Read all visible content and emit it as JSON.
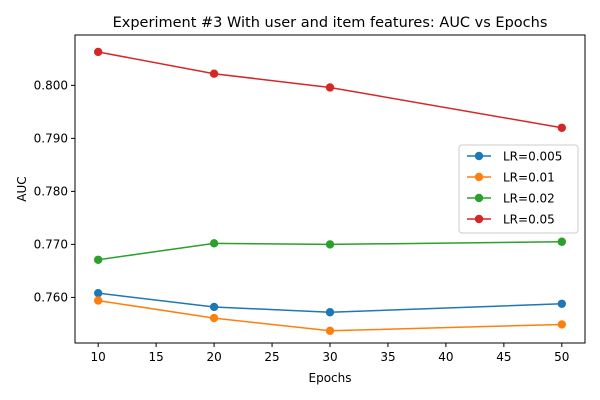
{
  "chart_data": {
    "type": "line",
    "title": "Experiment #3 With user and item features: AUC vs Epochs",
    "xlabel": "Epochs",
    "ylabel": "AUC",
    "x": [
      10,
      20,
      30,
      50
    ],
    "xlim": [
      8,
      52
    ],
    "ylim": [
      0.7514,
      0.8095
    ],
    "xticks": [
      10,
      15,
      20,
      25,
      30,
      35,
      40,
      45,
      50
    ],
    "xtick_labels": [
      "10",
      "15",
      "20",
      "25",
      "30",
      "35",
      "40",
      "45",
      "50"
    ],
    "yticks": [
      0.76,
      0.77,
      0.78,
      0.79,
      0.8
    ],
    "ytick_labels": [
      "0.760",
      "0.770",
      "0.780",
      "0.790",
      "0.800"
    ],
    "grid": false,
    "legend": "center-right",
    "series": [
      {
        "name": "LR=0.005",
        "color": "#1f77b4",
        "values": [
          0.7608,
          0.7582,
          0.7572,
          0.7588
        ]
      },
      {
        "name": "LR=0.01",
        "color": "#ff7f0e",
        "values": [
          0.7594,
          0.7561,
          0.7537,
          0.7549
        ]
      },
      {
        "name": "LR=0.02",
        "color": "#2ca02c",
        "values": [
          0.7671,
          0.7702,
          0.77,
          0.7705
        ]
      },
      {
        "name": "LR=0.05",
        "color": "#d62728",
        "values": [
          0.8063,
          0.8022,
          0.7996,
          0.792
        ]
      }
    ]
  }
}
